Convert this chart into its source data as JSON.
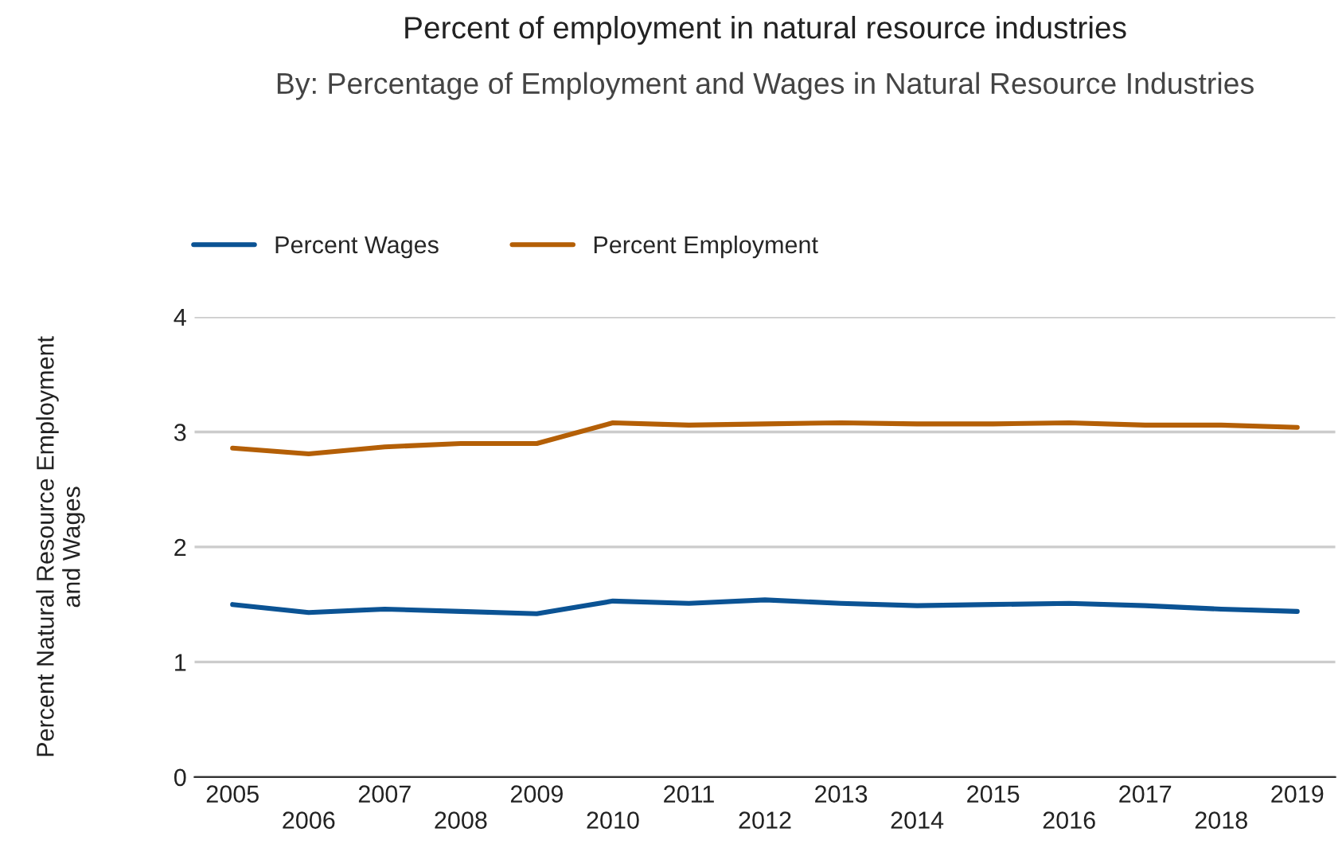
{
  "chart_data": {
    "type": "line",
    "title": "Percent of employment in natural resource industries",
    "subtitle": "By: Percentage of Employment and Wages in Natural Resource Industries",
    "ylabel": "Percent Natural Resource Employment\nand Wages",
    "categories": [
      "2005",
      "2006",
      "2007",
      "2008",
      "2009",
      "2010",
      "2011",
      "2012",
      "2013",
      "2014",
      "2015",
      "2016",
      "2017",
      "2018",
      "2019"
    ],
    "series": [
      {
        "name": "Percent Wages",
        "color": "#0b5394",
        "values": [
          1.5,
          1.43,
          1.46,
          1.44,
          1.42,
          1.53,
          1.51,
          1.54,
          1.51,
          1.49,
          1.5,
          1.51,
          1.49,
          1.46,
          1.44
        ]
      },
      {
        "name": "Percent Employment",
        "color": "#b45f06",
        "values": [
          2.86,
          2.81,
          2.87,
          2.9,
          2.9,
          3.08,
          3.06,
          3.07,
          3.08,
          3.07,
          3.07,
          3.08,
          3.06,
          3.06,
          3.04
        ]
      }
    ],
    "ylim": [
      0,
      4
    ],
    "yticks": [
      0,
      1,
      2,
      3,
      4
    ],
    "grid": "y",
    "legend": "top left",
    "marker": "none",
    "line_style": "solid"
  }
}
